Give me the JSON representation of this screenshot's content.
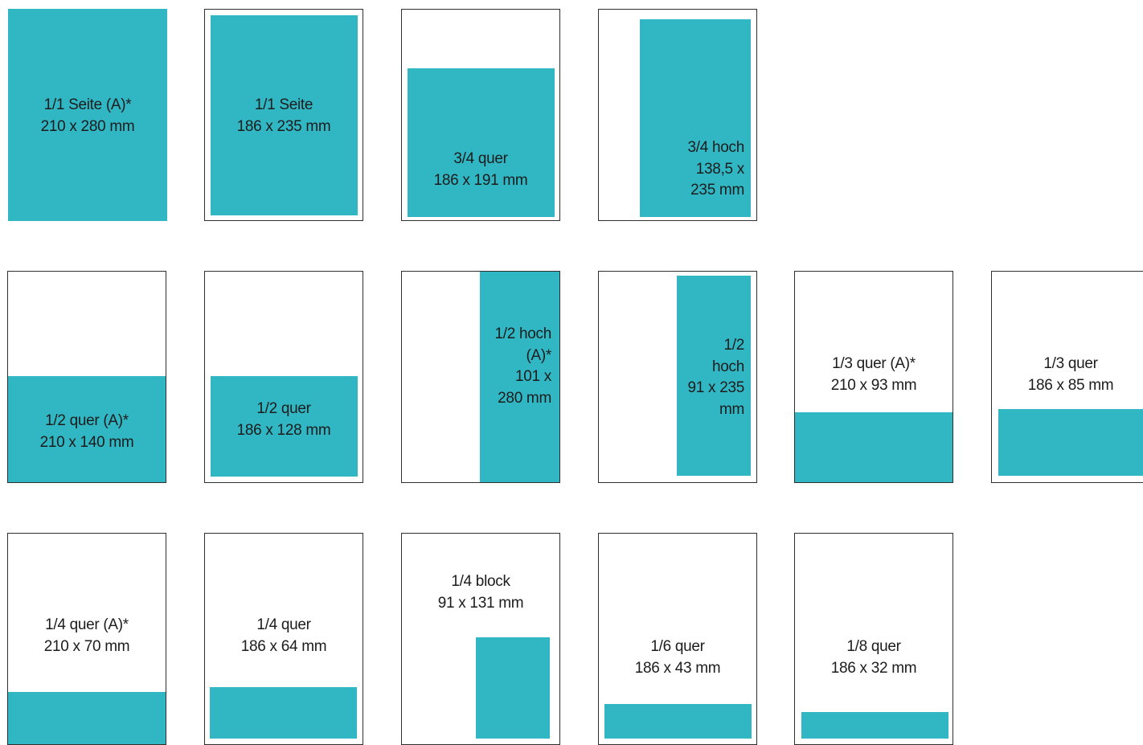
{
  "accent_color": "#31b7c4",
  "page_border_color": "#2f2f2f",
  "formats": {
    "f1": {
      "lines": [
        "1/1 Seite (A)*",
        "210 x 280 mm"
      ]
    },
    "f2": {
      "lines": [
        "1/1 Seite",
        "186 x 235 mm"
      ]
    },
    "f3": {
      "lines": [
        "3/4 quer",
        "186 x 191 mm"
      ]
    },
    "f4": {
      "lines": [
        "3/4 hoch",
        "138,5 x",
        "235 mm"
      ]
    },
    "f5": {
      "lines": [
        "1/2 quer (A)*",
        "210 x 140 mm"
      ]
    },
    "f6": {
      "lines": [
        "1/2 quer",
        "186 x 128 mm"
      ]
    },
    "f7": {
      "lines": [
        "1/2 hoch",
        "(A)*",
        "101 x",
        "280 mm"
      ]
    },
    "f8": {
      "lines": [
        "1/2",
        "hoch",
        "91 x 235",
        "mm"
      ]
    },
    "f9": {
      "lines": [
        "1/3 quer (A)*",
        "210 x 93 mm"
      ]
    },
    "f10": {
      "lines": [
        "1/3 quer",
        "186 x 85 mm"
      ]
    },
    "f11": {
      "lines": [
        "1/4 quer (A)*",
        "210 x 70 mm"
      ]
    },
    "f12": {
      "lines": [
        "1/4 quer",
        "186 x 64 mm"
      ]
    },
    "f13": {
      "lines": [
        "1/4 block",
        "91 x 131 mm"
      ]
    },
    "f14": {
      "lines": [
        "1/6 quer",
        "186 x 43 mm"
      ]
    },
    "f15": {
      "lines": [
        "1/8 quer",
        "186 x 32 mm"
      ]
    }
  }
}
